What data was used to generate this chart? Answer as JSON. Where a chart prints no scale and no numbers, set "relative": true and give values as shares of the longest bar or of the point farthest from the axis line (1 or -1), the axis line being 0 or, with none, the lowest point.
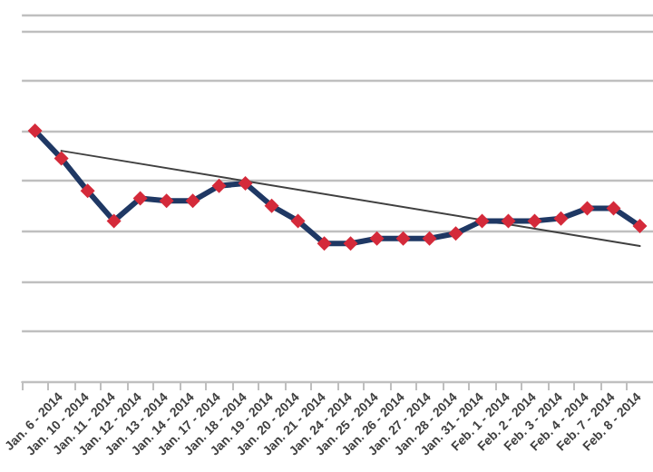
{
  "chart_data": {
    "type": "line",
    "relative": true,
    "grid": "y",
    "marker": "diamond",
    "line_style": "solid",
    "categories": [
      null,
      "Jan. 6 - 2014",
      "Jan. 10 - 2014",
      "Jan. 11 - 2014",
      "Jan. 12 - 2014",
      "Jan. 13 - 2014",
      "Jan. 14 - 2014",
      "Jan. 17 - 2014",
      "Jan. 18 - 2014",
      "Jan. 19 - 2014",
      "Jan. 20 - 2014",
      "Jan. 21 - 2014",
      "Jan. 24 - 2014",
      "Jan. 25 - 2014",
      "Jan. 26 - 2014",
      "Jan. 27 - 2014",
      "Jan. 28 - 2014",
      "Jan. 31 - 2014",
      "Feb. 1 - 2014",
      "Feb. 2 - 2014",
      "Feb. 3 - 2014",
      "Feb. 4 - 2014",
      "Feb. 7 - 2014",
      "Feb. 8 - 2014"
    ],
    "series": [
      {
        "color": "#1f3864",
        "values": [
          1,
          0.89,
          0.76,
          0.64,
          0.73,
          0.72,
          0.72,
          0.78,
          0.79,
          0.7,
          0.64,
          0.55,
          0.55,
          0.57,
          0.57,
          0.57,
          0.59,
          0.64,
          0.64,
          0.64,
          0.65,
          0.69,
          0.69,
          0.62
        ]
      },
      {
        "type": "line",
        "color": "#404040",
        "marker": "none",
        "x": [
          "Jan. 6 - 2014",
          "Feb. 8 - 2014"
        ],
        "values": [
          0.92,
          0.54
        ]
      }
    ]
  }
}
